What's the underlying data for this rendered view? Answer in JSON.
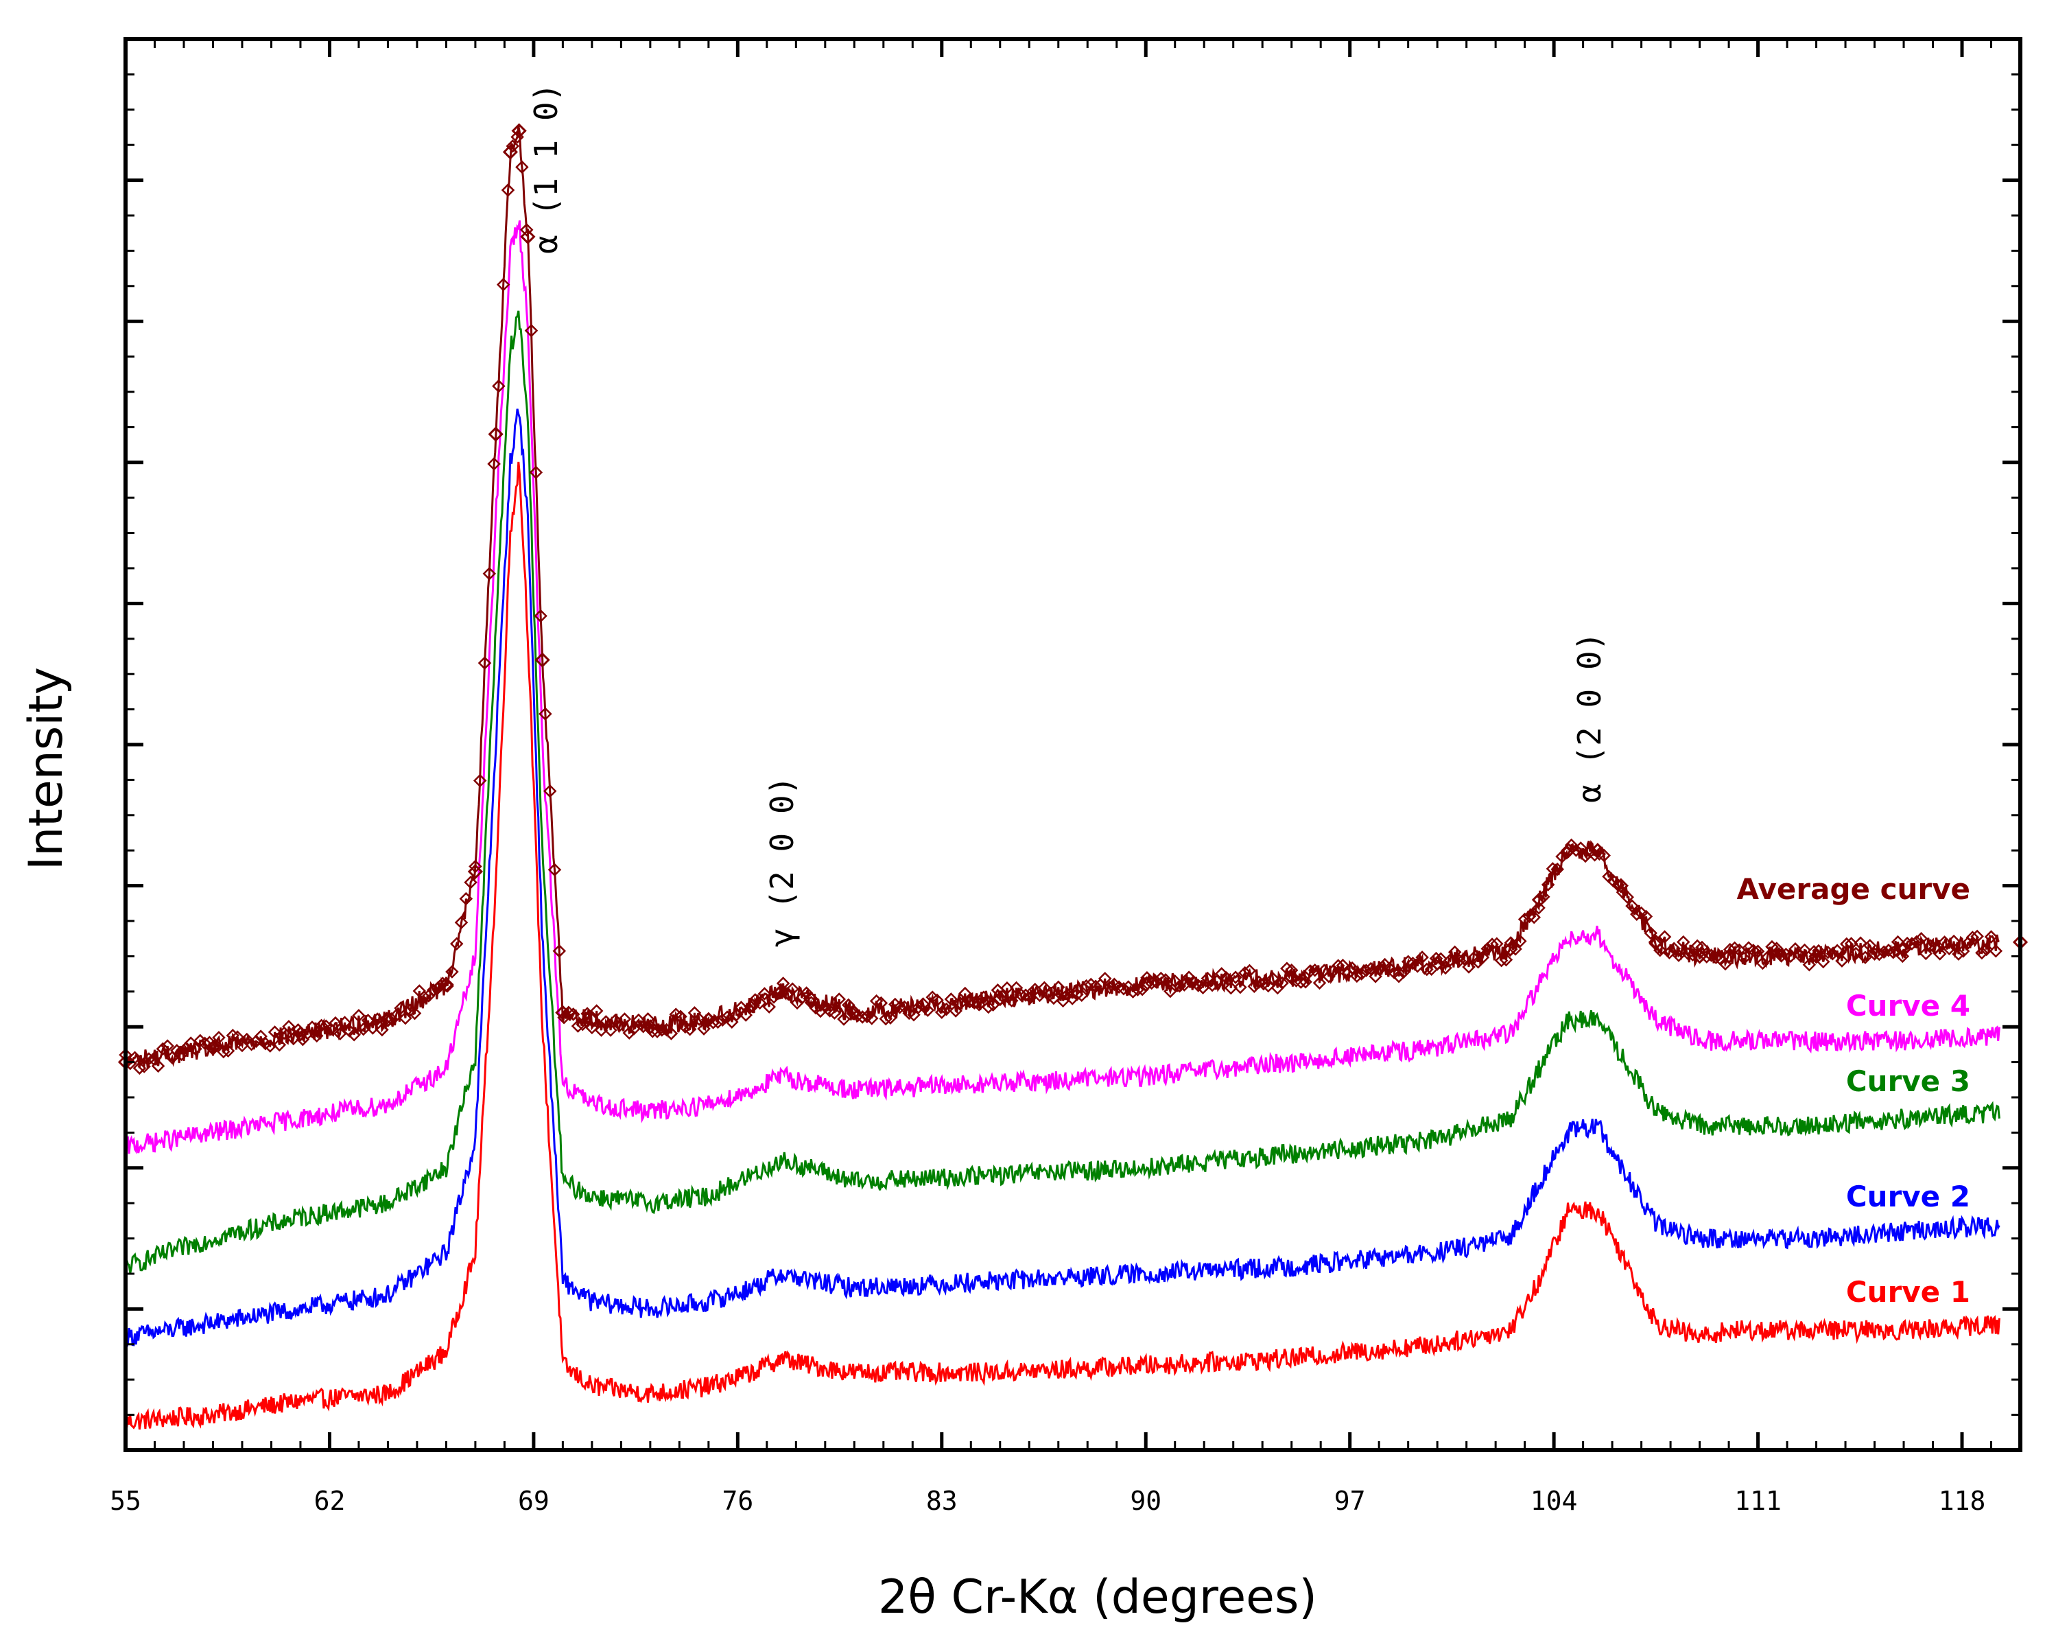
{
  "chart_data": {
    "type": "line",
    "title": "",
    "xlabel": "2θ Cr-Kα (degrees)",
    "ylabel": "Intensity",
    "xlim": [
      55,
      120
    ],
    "ylim": [
      0,
      100
    ],
    "x_ticks": [
      55,
      62,
      69,
      76,
      83,
      90,
      97,
      104,
      111,
      118
    ],
    "x_tick_labels": [
      "55",
      "62",
      "69",
      "76",
      "83",
      "90",
      "97",
      "104",
      "111",
      "118"
    ],
    "y_tick_labels_shown": false,
    "grid": false,
    "peak_annotations": [
      {
        "label": "α (1 1 0)",
        "x": 69.8
      },
      {
        "label": "γ (2 0 0)",
        "x": 77.9
      },
      {
        "label": "α (2 0 0)",
        "x": 105.6
      }
    ],
    "series": [
      {
        "name": "Curve 1",
        "color": "#ff0000",
        "marker": "none",
        "x": [
          55,
          58,
          61,
          64,
          66,
          67,
          67.7,
          68.2,
          68.5,
          68.8,
          69.3,
          70,
          71,
          73,
          75,
          76.5,
          77.5,
          78.5,
          80,
          85,
          90,
          95,
          100,
          102.5,
          103.5,
          104.5,
          105.5,
          106.3,
          107.5,
          109,
          110,
          113,
          116,
          120
        ],
        "values": [
          2,
          2.5,
          3.5,
          4,
          7,
          14,
          40,
          65,
          70,
          58,
          30,
          6,
          4.5,
          4,
          4.5,
          5.5,
          6.5,
          6,
          5.5,
          5.5,
          6,
          6.5,
          7.5,
          8.5,
          12,
          17,
          17,
          14,
          9,
          8,
          8.5,
          8.5,
          8.5,
          9
        ]
      },
      {
        "name": "Curve 2",
        "color": "#0000ff",
        "marker": "none",
        "x": [
          55,
          58,
          61,
          64,
          66,
          67,
          67.7,
          68.2,
          68.5,
          68.8,
          69.3,
          70,
          71,
          73,
          75,
          76.5,
          77.5,
          78.5,
          80,
          85,
          90,
          95,
          100,
          102.5,
          103.5,
          104.5,
          105.5,
          106.3,
          107.5,
          109,
          110,
          113,
          116,
          120
        ],
        "values": [
          8,
          9,
          10,
          11,
          14,
          22,
          50,
          70,
          74,
          66,
          36,
          12,
          10.5,
          10,
          10.5,
          11.5,
          12.5,
          12,
          11.5,
          12,
          12.5,
          13,
          14,
          15,
          19,
          22.5,
          23,
          20,
          16,
          15,
          15,
          15,
          15.5,
          16
        ]
      },
      {
        "name": "Curve 3",
        "color": "#008000",
        "marker": "none",
        "x": [
          55,
          58,
          61,
          64,
          66,
          67,
          67.7,
          68.2,
          68.5,
          68.8,
          69.3,
          70,
          71,
          73,
          75,
          76.5,
          77.5,
          78.5,
          80,
          85,
          90,
          95,
          100,
          102.5,
          103.5,
          104.5,
          105.5,
          106.3,
          107.5,
          109,
          110,
          113,
          116,
          120
        ],
        "values": [
          13,
          15,
          16.5,
          17.5,
          20,
          28,
          58,
          78,
          80.5,
          73,
          42,
          19,
          18,
          17.5,
          18,
          19.5,
          20.5,
          20,
          19,
          19.5,
          20,
          21,
          22,
          23.5,
          27,
          30.5,
          30.5,
          28,
          24,
          23,
          23,
          23,
          23.5,
          24
        ]
      },
      {
        "name": "Curve 4",
        "color": "#ff00ff",
        "marker": "none",
        "x": [
          55,
          58,
          61,
          64,
          66,
          67,
          67.7,
          68.2,
          68.5,
          68.8,
          69.3,
          70,
          71,
          73,
          75,
          76.5,
          77.5,
          78.5,
          80,
          85,
          90,
          95,
          100,
          102.5,
          103.5,
          104.5,
          105.5,
          106.3,
          107.5,
          109,
          110,
          113,
          116,
          120
        ],
        "values": [
          21.5,
          22.5,
          23.5,
          24.5,
          27,
          35,
          66,
          85,
          87,
          80,
          50,
          26,
          24.5,
          24,
          24.5,
          25.5,
          26.5,
          26,
          25.5,
          26,
          26.5,
          27.5,
          28.5,
          29.5,
          33,
          36.5,
          36.5,
          34,
          30.5,
          29,
          29,
          29,
          29,
          29.5
        ]
      },
      {
        "name": "Average curve",
        "color": "#800000",
        "marker": "diamond",
        "x": [
          55,
          58,
          61,
          64,
          66,
          67,
          67.7,
          68.2,
          68.5,
          68.8,
          69.3,
          70,
          71,
          73,
          75,
          76.5,
          77.5,
          78.5,
          80,
          85,
          90,
          95,
          100,
          102.5,
          103.5,
          104.5,
          105.5,
          106.3,
          107.5,
          109,
          110,
          113,
          116,
          120
        ],
        "values": [
          27.5,
          28.5,
          29.5,
          30.5,
          33,
          41,
          72,
          92,
          93.5,
          86,
          56,
          31,
          30.5,
          30,
          30.5,
          31.5,
          32.5,
          32,
          31,
          32,
          33,
          33.5,
          34.5,
          35.5,
          39,
          42.5,
          42.5,
          40,
          36,
          35,
          35,
          35,
          35.5,
          36
        ]
      }
    ]
  }
}
